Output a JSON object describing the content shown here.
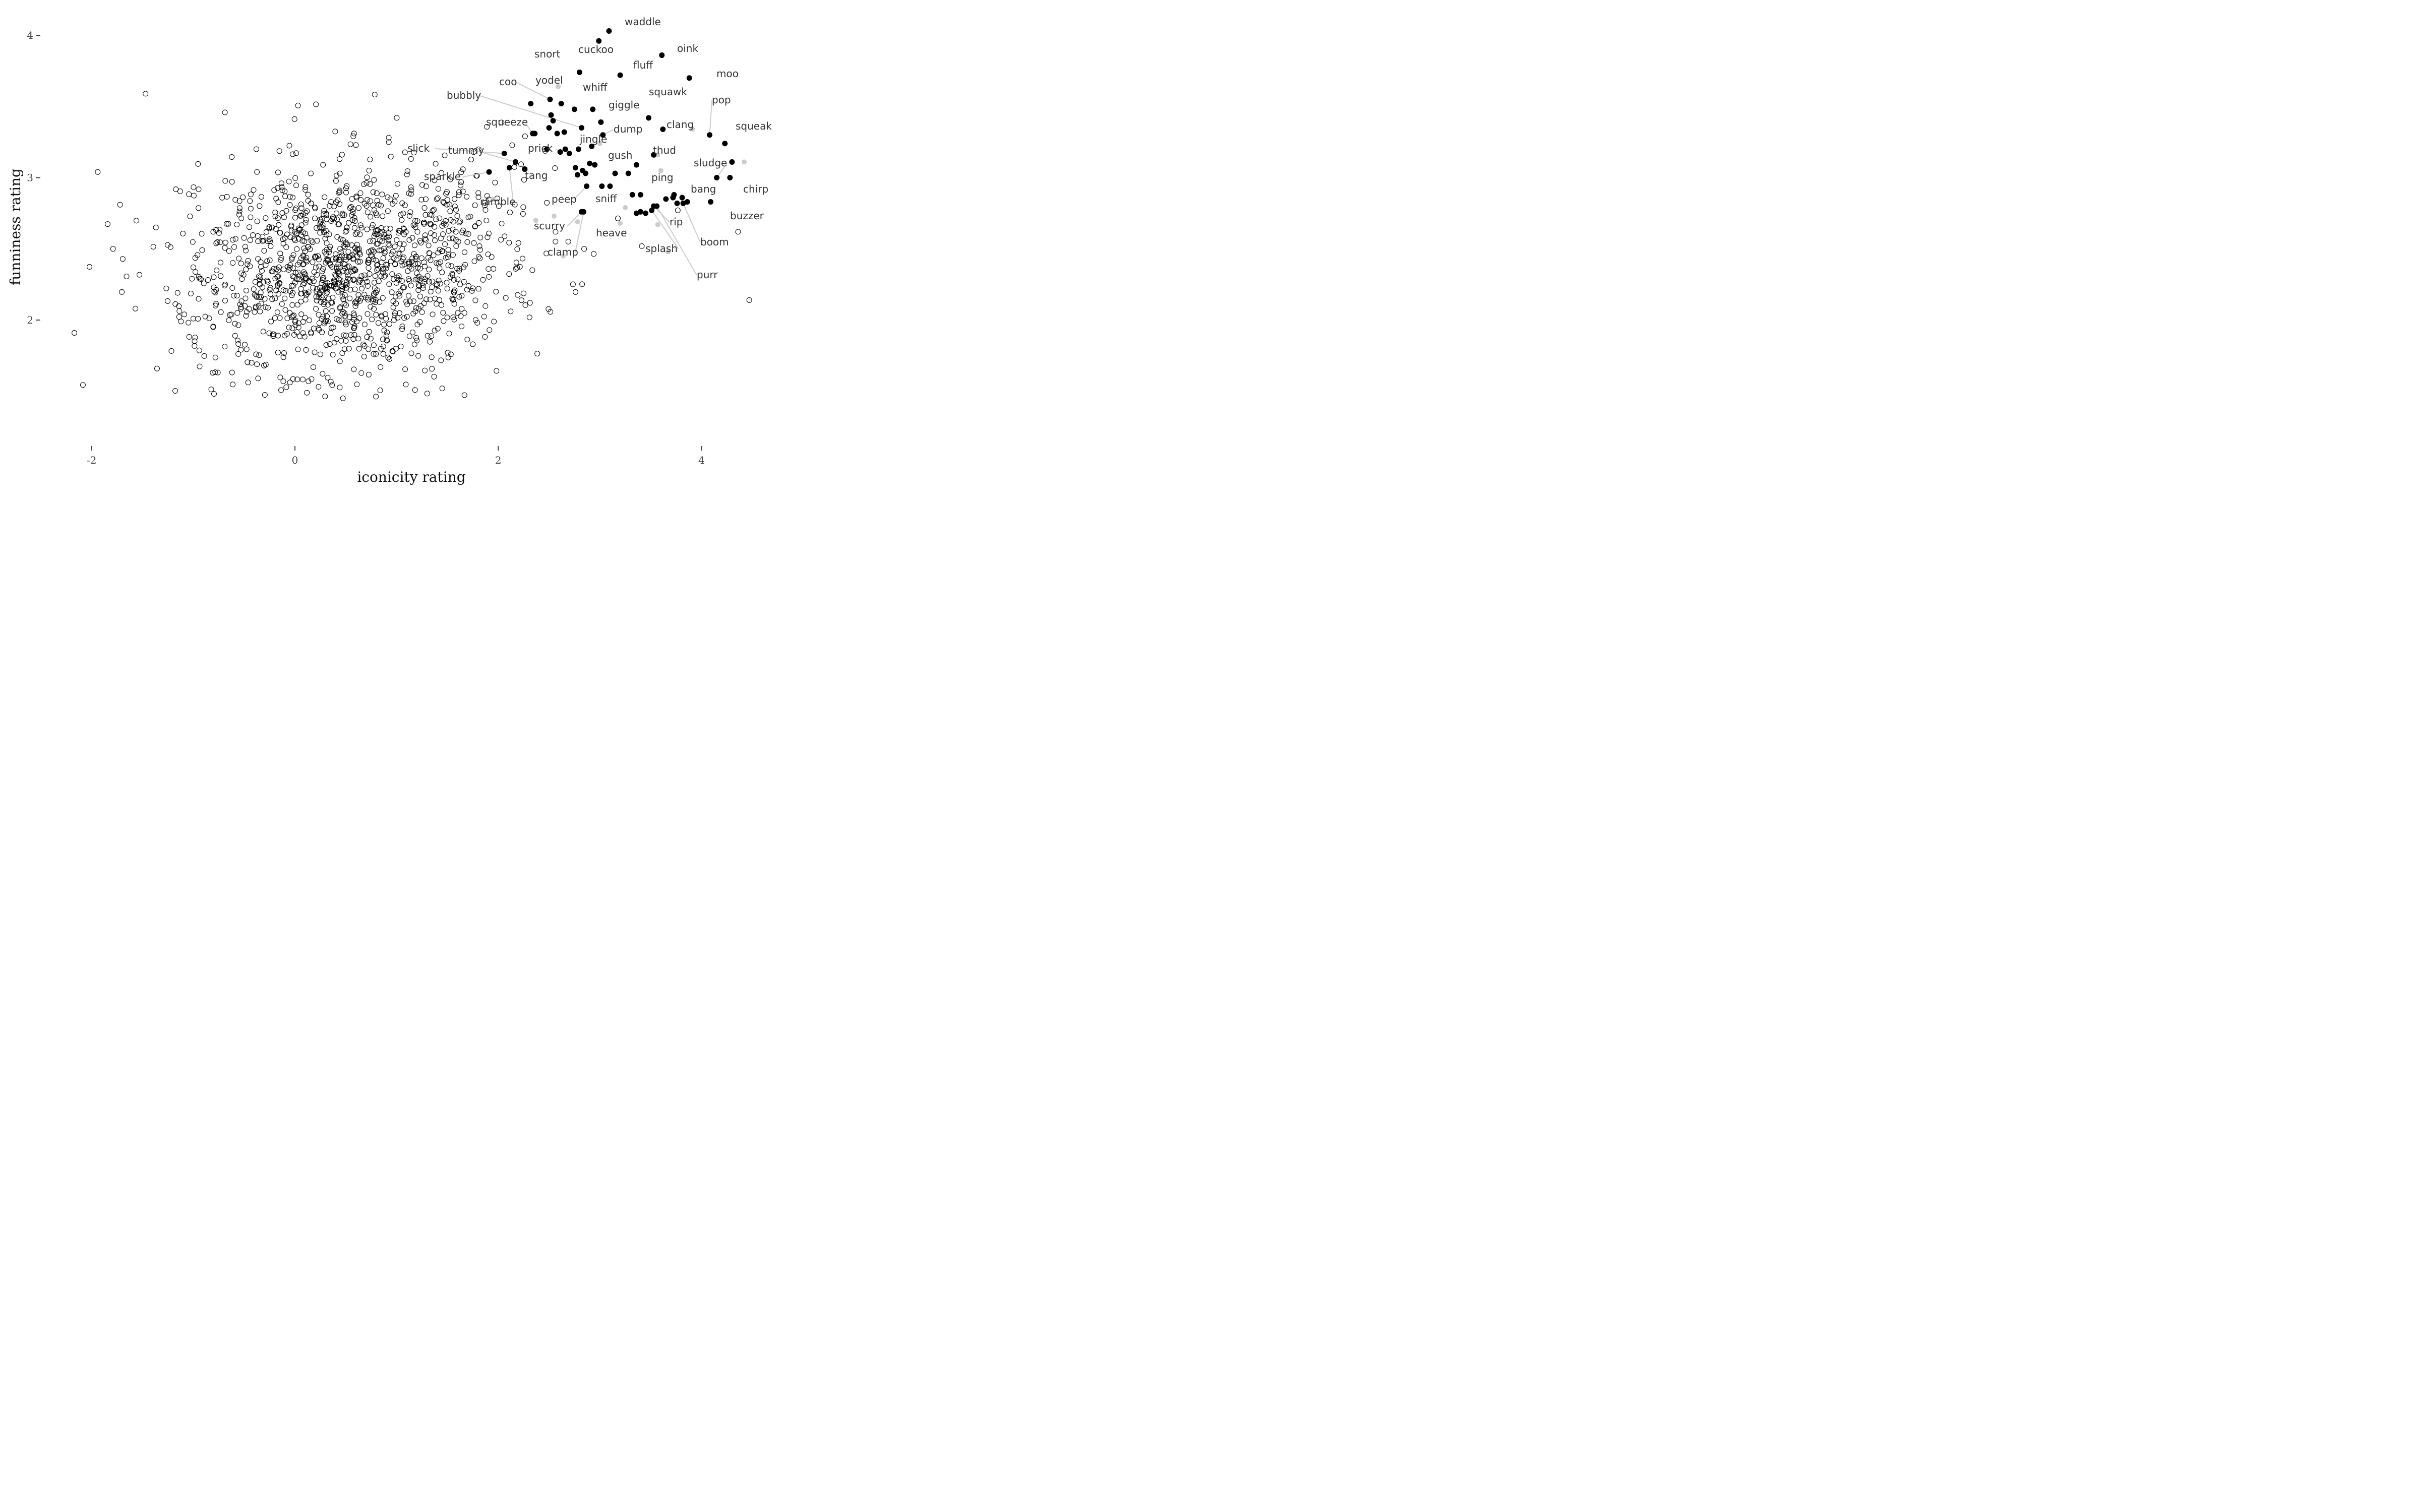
{
  "chart_data": {
    "type": "scatter",
    "title": "",
    "xlabel": "iconicity rating",
    "ylabel": "funniness rating",
    "xlim": [
      -2.5,
      5
    ],
    "ylim": [
      1.25,
      4.25
    ],
    "xticks": [
      {
        "value": -2,
        "label": "-2"
      },
      {
        "value": 0,
        "label": "0"
      },
      {
        "value": 2,
        "label": "2"
      },
      {
        "value": 4,
        "label": "4"
      }
    ],
    "yticks": [
      {
        "value": 2,
        "label": "2"
      },
      {
        "value": 3,
        "label": "3"
      },
      {
        "value": 4,
        "label": "4"
      }
    ],
    "grid": false,
    "legend": "none",
    "colors": {
      "filled": "#000000",
      "open_stroke": "#000000",
      "gray_point": "#cccccc",
      "leader": "#cccccc"
    },
    "labeled_points": [
      {
        "label": "waddle",
        "x": 3.09,
        "y": 4.03
      },
      {
        "label": "oink",
        "x": 3.61,
        "y": 3.86
      },
      {
        "label": "cuckoo",
        "x": 2.99,
        "y": 3.96
      },
      {
        "label": "snort",
        "x": 2.8,
        "y": 3.74
      },
      {
        "label": "fluff",
        "x": 3.2,
        "y": 3.72
      },
      {
        "label": "moo",
        "x": 3.88,
        "y": 3.7
      },
      {
        "label": "coo",
        "x": 2.51,
        "y": 3.55
      },
      {
        "label": "yodel",
        "x": 2.62,
        "y": 3.52
      },
      {
        "label": "whiff",
        "x": 2.93,
        "y": 3.48
      },
      {
        "label": "squawk",
        "x": 3.48,
        "y": 3.42
      },
      {
        "label": "bubbly",
        "x": 2.82,
        "y": 3.35
      },
      {
        "label": "giggle",
        "x": 3.01,
        "y": 3.39
      },
      {
        "label": "pop",
        "x": 4.08,
        "y": 3.3
      },
      {
        "label": "squeeze",
        "x": 2.34,
        "y": 3.31
      },
      {
        "label": "dump",
        "x": 3.03,
        "y": 3.3
      },
      {
        "label": "clang",
        "x": 3.62,
        "y": 3.34
      },
      {
        "label": "squeak",
        "x": 4.23,
        "y": 3.24
      },
      {
        "label": "jingle",
        "x": 2.79,
        "y": 3.2
      },
      {
        "label": "slick",
        "x": 2.06,
        "y": 3.17
      },
      {
        "label": "tummy",
        "x": 2.17,
        "y": 3.11
      },
      {
        "label": "prick",
        "x": 2.61,
        "y": 3.18
      },
      {
        "label": "gush",
        "x": 2.95,
        "y": 3.09
      },
      {
        "label": "thud",
        "x": 3.53,
        "y": 3.16
      },
      {
        "label": "sludge",
        "x": 4.15,
        "y": 3.0
      },
      {
        "label": "chirp",
        "x": 4.3,
        "y": 3.11
      },
      {
        "label": "sparkle",
        "x": 1.91,
        "y": 3.04
      },
      {
        "label": "tang",
        "x": 2.26,
        "y": 3.06
      },
      {
        "label": "ping",
        "x": 3.36,
        "y": 3.09
      },
      {
        "label": "ramble",
        "x": 2.11,
        "y": 3.07
      },
      {
        "label": "peep",
        "x": 2.87,
        "y": 2.94
      },
      {
        "label": "sniff",
        "x": 3.02,
        "y": 2.94
      },
      {
        "label": "bang",
        "x": 3.73,
        "y": 2.88
      },
      {
        "label": "buzzer",
        "x": 4.09,
        "y": 2.83
      },
      {
        "label": "rip",
        "x": 3.53,
        "y": 2.8
      },
      {
        "label": "scurry",
        "x": 2.82,
        "y": 2.76
      },
      {
        "label": "heave",
        "x": 3.4,
        "y": 2.76
      },
      {
        "label": "boom",
        "x": 3.82,
        "y": 2.82
      },
      {
        "label": "splash",
        "x": 3.51,
        "y": 2.77
      },
      {
        "label": "clamp",
        "x": 2.84,
        "y": 2.76
      },
      {
        "label": "purr",
        "x": 3.56,
        "y": 2.8
      }
    ],
    "highlighted_points": [
      [
        2.32,
        3.52
      ],
      [
        2.36,
        3.31
      ],
      [
        2.5,
        3.35
      ],
      [
        2.52,
        3.44
      ],
      [
        2.54,
        3.4
      ],
      [
        2.65,
        3.32
      ],
      [
        2.66,
        3.2
      ],
      [
        2.7,
        3.17
      ],
      [
        2.76,
        3.07
      ],
      [
        2.78,
        3.02
      ],
      [
        2.86,
        3.03
      ],
      [
        2.9,
        3.1
      ],
      [
        2.92,
        3.22
      ],
      [
        3.1,
        2.94
      ],
      [
        3.15,
        3.03
      ],
      [
        3.28,
        3.03
      ],
      [
        3.32,
        2.88
      ],
      [
        3.36,
        2.75
      ],
      [
        3.4,
        2.88
      ],
      [
        3.45,
        2.75
      ],
      [
        3.65,
        2.85
      ],
      [
        3.72,
        2.86
      ],
      [
        3.76,
        2.82
      ],
      [
        3.81,
        2.86
      ],
      [
        3.86,
        2.83
      ],
      [
        4.28,
        3.0
      ],
      [
        2.75,
        3.48
      ],
      [
        2.83,
        3.05
      ],
      [
        2.58,
        3.31
      ],
      [
        2.48,
        3.2
      ]
    ],
    "gray_points": [
      [
        2.59,
        3.64
      ],
      [
        3.91,
        3.34
      ],
      [
        3.57,
        3.16
      ],
      [
        2.27,
        3.06
      ],
      [
        3.0,
        3.24
      ],
      [
        3.6,
        3.05
      ],
      [
        4.42,
        3.11
      ],
      [
        2.78,
        2.69
      ],
      [
        2.37,
        2.7
      ],
      [
        3.25,
        2.79
      ],
      [
        2.55,
        2.73
      ],
      [
        1.95,
        2.85
      ],
      [
        3.2,
        2.68
      ],
      [
        3.57,
        2.67
      ],
      [
        3.67,
        2.48
      ],
      [
        2.64,
        2.45
      ]
    ]
  }
}
